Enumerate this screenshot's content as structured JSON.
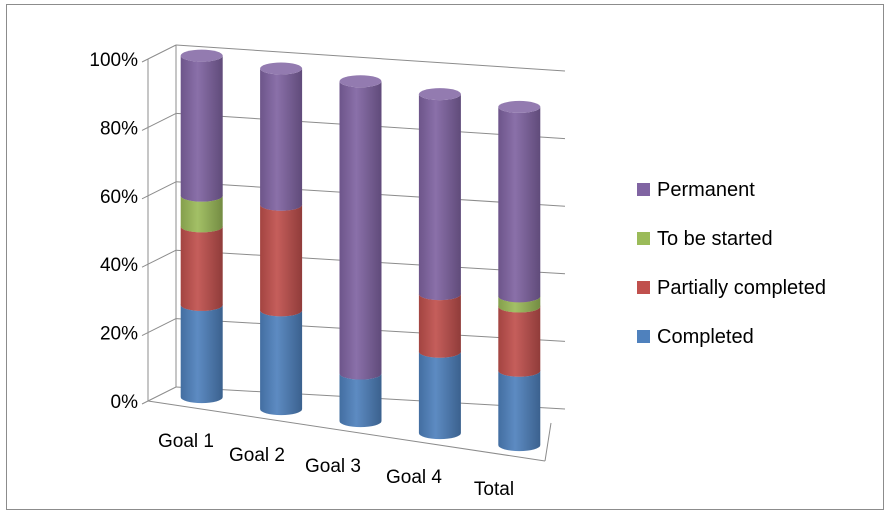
{
  "chart_data": {
    "type": "bar",
    "stacked": true,
    "percent_stacked": true,
    "three_d": true,
    "categories": [
      "Goal 1",
      "Goal 2",
      "Goal 3",
      "Goal 4",
      "Total"
    ],
    "series": [
      {
        "name": "Completed",
        "color": "#4f81bd",
        "values": [
          27,
          29,
          14,
          24,
          22
        ]
      },
      {
        "name": "Partially completed",
        "color": "#c0504d",
        "values": [
          23,
          31,
          0,
          17,
          19
        ]
      },
      {
        "name": "To be started",
        "color": "#9bbb59",
        "values": [
          9,
          0,
          0,
          0,
          3
        ]
      },
      {
        "name": "Permanent",
        "color": "#8064a2",
        "values": [
          41,
          40,
          86,
          59,
          56
        ]
      }
    ],
    "y_tick_labels": [
      "0%",
      "20%",
      "40%",
      "60%",
      "80%",
      "100%"
    ],
    "ylim": [
      0,
      100
    ],
    "grid": true,
    "legend": {
      "position": "right",
      "order": [
        "Permanent",
        "To be started",
        "Partially completed",
        "Completed"
      ]
    }
  }
}
